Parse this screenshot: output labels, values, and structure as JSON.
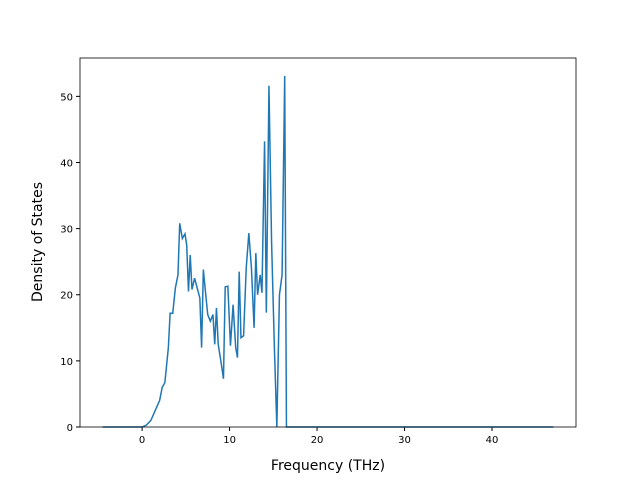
{
  "chart_data": {
    "type": "line",
    "x_label": "Frequency (THz)",
    "y_label": "Density of States",
    "x": [
      -4.5,
      0,
      0.5,
      1,
      1.5,
      2,
      2.3,
      2.6,
      3,
      3.2,
      3.5,
      3.8,
      4.1,
      4.3,
      4.6,
      4.9,
      5.1,
      5.3,
      5.5,
      5.7,
      6.0,
      6.3,
      6.6,
      6.8,
      7.0,
      7.2,
      7.5,
      7.8,
      8.1,
      8.3,
      8.5,
      8.7,
      9.0,
      9.3,
      9.5,
      9.8,
      10.1,
      10.4,
      10.7,
      10.9,
      11.1,
      11.3,
      11.6,
      11.9,
      12.2,
      12.5,
      12.8,
      13.0,
      13.2,
      13.5,
      13.7,
      14.0,
      14.2,
      14.5,
      14.8,
      15.1,
      15.4,
      15.7,
      16.0,
      16.3,
      16.5,
      17,
      47
    ],
    "series": [
      {
        "color": "#1f77b4",
        "values": [
          0,
          0,
          0.3,
          1.0,
          2.5,
          4,
          6,
          6.7,
          12,
          17.2,
          17.2,
          21,
          23,
          30.8,
          28.5,
          29.2,
          27.5,
          20.5,
          26,
          20.8,
          22.5,
          21,
          19.5,
          12,
          23.8,
          21,
          17,
          16,
          17,
          12.5,
          18,
          12.5,
          10,
          7.3,
          21.2,
          21.3,
          12.3,
          18.5,
          12,
          10.5,
          23.5,
          13.5,
          13.8,
          24,
          29.3,
          24,
          15,
          26.3,
          20,
          23,
          20.3,
          43.2,
          17.3,
          51.6,
          28,
          13,
          0,
          20,
          23,
          53.1,
          0,
          0,
          0
        ]
      }
    ],
    "xlim": [
      -7.1,
      49.6
    ],
    "xticks": [
      0,
      10,
      20,
      30,
      40
    ],
    "ylim": [
      0,
      55.8
    ],
    "yticks": [
      0,
      10,
      20,
      30,
      40,
      50
    ]
  }
}
